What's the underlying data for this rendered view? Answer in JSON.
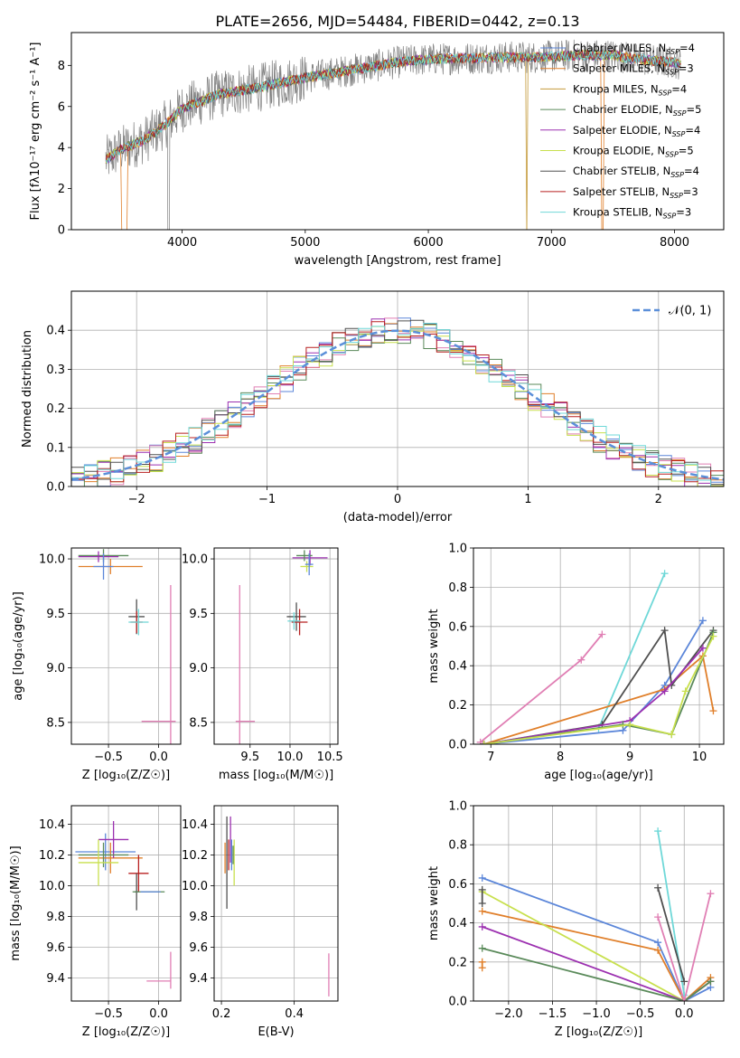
{
  "figure": {
    "title": "PLATE=2656, MJD=54484, FIBERID=0442, z=0.13"
  },
  "colors": {
    "chabrier_miles": "#5b86d9",
    "salpeter_miles": "#e07f2a",
    "kroupa_miles": "#c49a3a",
    "chabrier_elodie": "#5a8a5a",
    "salpeter_elodie": "#9c30b0",
    "kroupa_elodie": "#c8e04e",
    "chabrier_stelib": "#505050",
    "salpeter_stelib": "#b82020",
    "kroupa_stelib": "#6fd8d8",
    "pink": "#e07fb4",
    "data": "#808080",
    "normal": "#5b8fd9",
    "grid": "#b0b0b0"
  },
  "chart_data": [
    {
      "id": "spectrum",
      "type": "line",
      "xlabel": "wavelength [Angstrom, rest frame]",
      "ylabel_main": "Flux [f",
      "ylabel_sub": "λ",
      "ylabel_rest": "10",
      "xlim": [
        3100,
        8400
      ],
      "ylim": [
        0,
        9.6
      ],
      "xticks": [
        "4000",
        "5000",
        "6000",
        "7000",
        "8000"
      ],
      "xtick_values": [
        4000,
        5000,
        6000,
        7000,
        8000
      ],
      "yticks": [
        "0",
        "2",
        "4",
        "6",
        "8"
      ],
      "ytick_values": [
        0,
        2,
        4,
        6,
        8
      ],
      "ylabel_full": "Flux [fλ10⁻¹⁷ erg cm⁻² s⁻¹ A⁻¹]",
      "legend": [
        {
          "pre": "Chabrier MILES, N",
          "sub": "SSP",
          "post": "=4",
          "color": "#5b86d9"
        },
        {
          "pre": "Salpeter MILES, N",
          "sub": "SSP",
          "post": "=3",
          "color": "#e07f2a"
        },
        {
          "pre": "Kroupa MILES, N",
          "sub": "SSP",
          "post": "=4",
          "color": "#c49a3a"
        },
        {
          "pre": "Chabrier ELODIE, N",
          "sub": "SSP",
          "post": "=5",
          "color": "#5a8a5a"
        },
        {
          "pre": "Salpeter ELODIE, N",
          "sub": "SSP",
          "post": "=4",
          "color": "#9c30b0"
        },
        {
          "pre": "Kroupa ELODIE, N",
          "sub": "SSP",
          "post": "=5",
          "color": "#c8e04e"
        },
        {
          "pre": "Chabrier STELIB, N",
          "sub": "SSP",
          "post": "=4",
          "color": "#505050"
        },
        {
          "pre": "Salpeter STELIB, N",
          "sub": "SSP",
          "post": "=3",
          "color": "#b82020"
        },
        {
          "pre": "Kroupa STELIB, N",
          "sub": "SSP",
          "post": "=3",
          "color": "#6fd8d8"
        }
      ],
      "continuum": {
        "x": [
          3380,
          3500,
          3700,
          3900,
          4000,
          4300,
          4600,
          5000,
          5200,
          5500,
          5800,
          6000,
          6300,
          6600,
          6900,
          7200,
          7500,
          7700,
          7900,
          8050
        ],
        "y": [
          3.4,
          3.9,
          4.4,
          5.3,
          5.9,
          6.6,
          6.9,
          7.4,
          7.6,
          7.9,
          8.2,
          8.3,
          8.35,
          8.4,
          8.4,
          8.5,
          8.5,
          8.3,
          8.2,
          8.1
        ]
      }
    },
    {
      "id": "residuals",
      "type": "line",
      "xlabel": "(data-model)/error",
      "ylabel": "Normed distribution",
      "xlim": [
        -2.5,
        2.5
      ],
      "ylim": [
        0,
        0.5
      ],
      "xticks": [
        "−2",
        "−1",
        "0",
        "1",
        "2"
      ],
      "xtick_values": [
        -2,
        -1,
        0,
        1,
        2
      ],
      "yticks": [
        "0.0",
        "0.1",
        "0.2",
        "0.3",
        "0.4"
      ],
      "ytick_values": [
        0,
        0.1,
        0.2,
        0.3,
        0.4
      ],
      "legend_label": "𝒩(0, 1)",
      "bin_width": 0.1
    },
    {
      "id": "age_vs_z",
      "type": "scatter",
      "xlabel": "Z [log₁₀(Z/Z☉)]",
      "ylabel": "age  [log₁₀(age/yr)]",
      "xlim": [
        -0.87,
        0.22
      ],
      "ylim": [
        8.3,
        10.1
      ],
      "xticks": [
        "−0.5",
        "0.0"
      ],
      "xtick_values": [
        -0.5,
        0.0
      ],
      "yticks": [
        "8.5",
        "9.0",
        "9.5",
        "10.0"
      ],
      "ytick_values": [
        8.5,
        9.0,
        9.5,
        10.0
      ],
      "points": [
        {
          "x": -0.55,
          "y": 10.03,
          "xerr": 0.25,
          "yerr": 0.06,
          "color": "#5a8a5a"
        },
        {
          "x": -0.48,
          "y": 9.93,
          "xerr": 0.32,
          "yerr": 0.07,
          "color": "#e07f2a"
        },
        {
          "x": -0.6,
          "y": 10.02,
          "xerr": 0.2,
          "yerr": 0.05,
          "color": "#9c30b0"
        },
        {
          "x": -0.55,
          "y": 9.93,
          "xerr": 0.1,
          "yerr": 0.12,
          "color": "#5b86d9"
        },
        {
          "x": -0.22,
          "y": 9.47,
          "xerr": 0.08,
          "yerr": 0.16,
          "color": "#505050"
        },
        {
          "x": -0.22,
          "y": 9.42,
          "xerr": 0.06,
          "yerr": 0.1,
          "color": "#b82020"
        },
        {
          "x": -0.2,
          "y": 9.42,
          "xerr": 0.1,
          "yerr": 0.12,
          "color": "#6fd8d8"
        },
        {
          "x": 0.0,
          "y": 8.51,
          "xerr": 0.17,
          "yerr": 0.0,
          "color": "#e07fb4"
        },
        {
          "x": 0.12,
          "y": 8.99,
          "xerr": 0.0,
          "yerr": 0.77,
          "color": "#e07fb4"
        }
      ]
    },
    {
      "id": "age_vs_mass",
      "type": "scatter",
      "xlabel": "mass [log₁₀(M/M☉)]",
      "xlim": [
        9.05,
        10.6
      ],
      "ylim": [
        8.3,
        10.1
      ],
      "xticks": [
        "9.5",
        "10.0",
        "10.5"
      ],
      "xtick_values": [
        9.5,
        10.0,
        10.5
      ],
      "yticks": [
        "8.5",
        "9.0",
        "9.5",
        "10.0"
      ],
      "ytick_values": [
        8.5,
        9.0,
        9.5,
        10.0
      ],
      "points": [
        {
          "x": 10.25,
          "y": 10.01,
          "xerr": 0.22,
          "yerr": 0.07,
          "color": "#9c30b0"
        },
        {
          "x": 10.18,
          "y": 10.03,
          "xerr": 0.1,
          "yerr": 0.05,
          "color": "#5a8a5a"
        },
        {
          "x": 10.21,
          "y": 9.93,
          "xerr": 0.08,
          "yerr": 0.05,
          "color": "#c8e04e"
        },
        {
          "x": 10.24,
          "y": 9.95,
          "xerr": 0.05,
          "yerr": 0.1,
          "color": "#5b86d9"
        },
        {
          "x": 10.08,
          "y": 9.47,
          "xerr": 0.12,
          "yerr": 0.13,
          "color": "#505050"
        },
        {
          "x": 10.12,
          "y": 9.42,
          "xerr": 0.1,
          "yerr": 0.12,
          "color": "#b82020"
        },
        {
          "x": 10.05,
          "y": 9.43,
          "xerr": 0.08,
          "yerr": 0.08,
          "color": "#6fd8d8"
        },
        {
          "x": 9.44,
          "y": 8.51,
          "xerr": 0.12,
          "yerr": 0.0,
          "color": "#e07fb4"
        },
        {
          "x": 9.37,
          "y": 8.99,
          "xerr": 0.0,
          "yerr": 0.77,
          "color": "#e07fb4"
        }
      ]
    },
    {
      "id": "weight_vs_age",
      "type": "line",
      "xlabel": "age  [log₁₀(age/yr)]",
      "ylabel": "mass weight",
      "xlim": [
        6.75,
        10.35
      ],
      "ylim": [
        0,
        1
      ],
      "xticks": [
        "7",
        "8",
        "9",
        "10"
      ],
      "xtick_values": [
        7,
        8,
        9,
        10
      ],
      "yticks": [
        "0.0",
        "0.2",
        "0.4",
        "0.6",
        "0.8",
        "1.0"
      ],
      "ytick_values": [
        0,
        0.2,
        0.4,
        0.6,
        0.8,
        1.0
      ],
      "series": [
        {
          "color": "#e07fb4",
          "x": [
            6.85,
            8.3,
            8.6
          ],
          "y": [
            0.01,
            0.43,
            0.56
          ]
        },
        {
          "color": "#6fd8d8",
          "x": [
            8.55,
            9.5
          ],
          "y": [
            0.08,
            0.87
          ]
        },
        {
          "color": "#5b86d9",
          "x": [
            6.9,
            8.9,
            9.5,
            10.05
          ],
          "y": [
            0.0,
            0.07,
            0.3,
            0.63
          ]
        },
        {
          "color": "#e07f2a",
          "x": [
            6.9,
            9.5,
            10.05,
            10.2
          ],
          "y": [
            0.0,
            0.28,
            0.45,
            0.17
          ]
        },
        {
          "color": "#505050",
          "x": [
            6.9,
            8.6,
            9.5,
            9.6,
            10.2
          ],
          "y": [
            0.0,
            0.1,
            0.58,
            0.3,
            0.58
          ]
        },
        {
          "color": "#9c30b0",
          "x": [
            6.9,
            9.0,
            9.5,
            10.05
          ],
          "y": [
            0.0,
            0.12,
            0.27,
            0.49
          ]
        },
        {
          "color": "#5a8a5a",
          "x": [
            6.9,
            8.9,
            9.6,
            10.2
          ],
          "y": [
            0.0,
            0.1,
            0.05,
            0.57
          ]
        },
        {
          "color": "#c8e04e",
          "x": [
            6.9,
            9.0,
            9.6,
            9.8,
            10.2
          ],
          "y": [
            0.0,
            0.1,
            0.05,
            0.27,
            0.55
          ]
        }
      ]
    },
    {
      "id": "mass_vs_z",
      "type": "scatter",
      "xlabel": "Z [log₁₀(Z/Z☉)]",
      "ylabel": "mass [log₁₀(M/M☉)]",
      "xlim": [
        -0.87,
        0.22
      ],
      "ylim": [
        9.25,
        10.52
      ],
      "xticks": [
        "−0.5",
        "0.0"
      ],
      "xtick_values": [
        -0.5,
        0.0
      ],
      "yticks": [
        "9.4",
        "9.6",
        "9.8",
        "10.0",
        "10.2",
        "10.4"
      ],
      "ytick_values": [
        9.4,
        9.6,
        9.8,
        10.0,
        10.2,
        10.4
      ],
      "points": [
        {
          "x": -0.53,
          "y": 10.22,
          "xerr": 0.3,
          "yerr": 0.12,
          "color": "#5b86d9"
        },
        {
          "x": -0.48,
          "y": 10.18,
          "xerr": 0.32,
          "yerr": 0.1,
          "color": "#e07f2a"
        },
        {
          "x": -0.45,
          "y": 10.3,
          "xerr": 0.15,
          "yerr": 0.12,
          "color": "#9c30b0"
        },
        {
          "x": -0.55,
          "y": 10.2,
          "xerr": 0.25,
          "yerr": 0.08,
          "color": "#5a8a5a"
        },
        {
          "x": -0.6,
          "y": 10.15,
          "xerr": 0.2,
          "yerr": 0.15,
          "color": "#c8e04e"
        },
        {
          "x": -0.2,
          "y": 10.08,
          "xerr": 0.1,
          "yerr": 0.12,
          "color": "#b82020"
        },
        {
          "x": -0.22,
          "y": 9.96,
          "xerr": 0.02,
          "yerr": 0.12,
          "color": "#505050"
        },
        {
          "x": -0.1,
          "y": 9.96,
          "xerr": 0.16,
          "yerr": 0.0,
          "color": "#5a8a5a"
        },
        {
          "x": -0.08,
          "y": 9.96,
          "xerr": 0.1,
          "yerr": 0.0,
          "color": "#5b86d9"
        },
        {
          "x": 0.0,
          "y": 9.38,
          "xerr": 0.12,
          "yerr": 0.0,
          "color": "#e07fb4"
        },
        {
          "x": 0.12,
          "y": 9.45,
          "xerr": 0.0,
          "yerr": 0.12,
          "color": "#e07fb4"
        }
      ]
    },
    {
      "id": "mass_vs_ebv",
      "type": "scatter",
      "xlabel": "E(B-V)",
      "xlim": [
        0.18,
        0.52
      ],
      "ylim": [
        9.25,
        10.52
      ],
      "xticks": [
        "0.2",
        "0.4"
      ],
      "xtick_values": [
        0.2,
        0.4
      ],
      "yticks": [
        "9.4",
        "9.6",
        "9.8",
        "10.0",
        "10.2",
        "10.4"
      ],
      "ytick_values": [
        9.4,
        9.6,
        9.8,
        10.0,
        10.2,
        10.4
      ],
      "points": [
        {
          "x": 0.21,
          "y": 10.18,
          "xerr": 0.0,
          "yerr": 0.1,
          "color": "#e07f2a"
        },
        {
          "x": 0.215,
          "y": 10.15,
          "xerr": 0.0,
          "yerr": 0.3,
          "color": "#505050"
        },
        {
          "x": 0.22,
          "y": 10.2,
          "xerr": 0.0,
          "yerr": 0.1,
          "color": "#b82020"
        },
        {
          "x": 0.225,
          "y": 10.3,
          "xerr": 0.0,
          "yerr": 0.15,
          "color": "#9c30b0"
        },
        {
          "x": 0.228,
          "y": 10.2,
          "xerr": 0.0,
          "yerr": 0.1,
          "color": "#5b86d9"
        },
        {
          "x": 0.235,
          "y": 10.15,
          "xerr": 0.0,
          "yerr": 0.15,
          "color": "#c8e04e"
        },
        {
          "x": 0.232,
          "y": 10.2,
          "xerr": 0.0,
          "yerr": 0.06,
          "color": "#5a8a5a"
        },
        {
          "x": 0.495,
          "y": 9.42,
          "xerr": 0.0,
          "yerr": 0.14,
          "color": "#e07fb4"
        }
      ]
    },
    {
      "id": "weight_vs_z",
      "type": "line",
      "xlabel": "Z [log₁₀(Z/Z☉)]",
      "ylabel": "mass weight",
      "xlim": [
        -2.4,
        0.45
      ],
      "ylim": [
        0,
        1
      ],
      "xticks": [
        "−2.0",
        "−1.5",
        "−1.0",
        "−0.5",
        "0.0"
      ],
      "xtick_values": [
        -2.0,
        -1.5,
        -1.0,
        -0.5,
        0.0
      ],
      "yticks": [
        "0.0",
        "0.2",
        "0.4",
        "0.6",
        "0.8",
        "1.0"
      ],
      "ytick_values": [
        0,
        0.2,
        0.4,
        0.6,
        0.8,
        1.0
      ],
      "series": [
        {
          "color": "#5b86d9",
          "x": [
            -2.3,
            -0.3,
            0.0,
            0.3
          ],
          "y": [
            0.63,
            0.3,
            0.0,
            0.07
          ]
        },
        {
          "color": "#e07f2a",
          "x": [
            -2.3,
            -0.3,
            0.0,
            0.3
          ],
          "y": [
            0.46,
            0.26,
            0.0,
            0.12
          ]
        },
        {
          "color": "#c8e04e",
          "x": [
            -2.3,
            0.0,
            0.3
          ],
          "y": [
            0.56,
            0.0,
            0.1
          ]
        },
        {
          "color": "#9c30b0",
          "x": [
            -2.3,
            0.0,
            0.3
          ],
          "y": [
            0.38,
            0.0,
            0.1
          ]
        },
        {
          "color": "#5a8a5a",
          "x": [
            -2.3,
            0.0,
            0.3
          ],
          "y": [
            0.27,
            0.0,
            0.1
          ]
        },
        {
          "color": "#6fd8d8",
          "x": [
            -0.3,
            0.0
          ],
          "y": [
            0.87,
            0.03
          ]
        },
        {
          "color": "#505050",
          "x": [
            -0.3,
            0.0
          ],
          "y": [
            0.58,
            0.1
          ]
        },
        {
          "color": "#e07fb4",
          "x": [
            -0.3,
            0.0,
            0.3
          ],
          "y": [
            0.43,
            0.0,
            0.55
          ]
        },
        {
          "color": "#505050",
          "x": [
            -2.3,
            -2.3
          ],
          "y": [
            0.5,
            0.57
          ]
        },
        {
          "color": "#e07f2a",
          "x": [
            -2.3,
            -2.3
          ],
          "y": [
            0.17,
            0.2
          ]
        }
      ]
    }
  ]
}
